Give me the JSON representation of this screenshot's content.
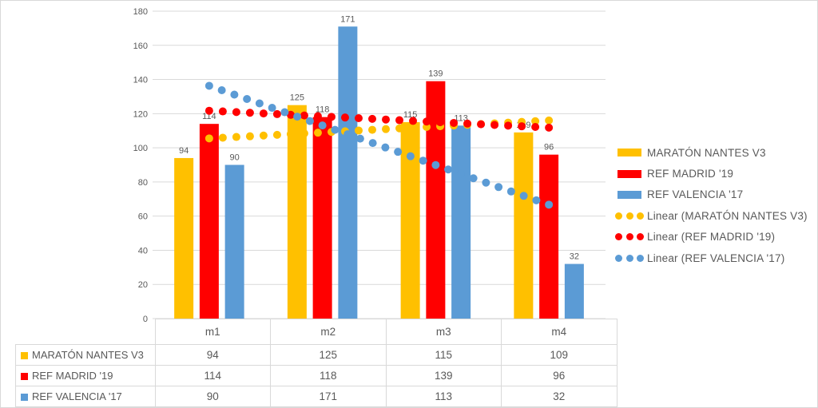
{
  "chart_data": {
    "type": "bar",
    "title": "",
    "categories": [
      "m1",
      "m2",
      "m3",
      "m4"
    ],
    "series": [
      {
        "name": "MARATÓN NANTES V3",
        "color": "#FFC000",
        "values": [
          94,
          125,
          115,
          109
        ]
      },
      {
        "name": "REF MADRID '19",
        "color": "#FF0000",
        "values": [
          114,
          118,
          139,
          96
        ]
      },
      {
        "name": "REF VALENCIA '17",
        "color": "#5B9BD5",
        "values": [
          90,
          171,
          113,
          32
        ]
      }
    ],
    "trendlines": [
      {
        "label": "Linear (MARATÓN NANTES V3)",
        "series_index": 0,
        "kind": "linear"
      },
      {
        "label": "Linear (REF MADRID '19)",
        "series_index": 1,
        "kind": "linear"
      },
      {
        "label": "Linear (REF VALENCIA '17)",
        "series_index": 2,
        "kind": "linear"
      }
    ],
    "y_axis": {
      "min": 0,
      "max": 180,
      "step": 20,
      "tick_labels": [
        "0",
        "20",
        "40",
        "60",
        "80",
        "100",
        "120",
        "140",
        "160",
        "180"
      ]
    },
    "xlabel": "",
    "ylabel": "",
    "grid": true,
    "data_labels": true,
    "legend_position": "right",
    "data_table_shown": true,
    "colors": {
      "grid": "#D9D9D9",
      "axis_text": "#595959",
      "label_text": "#595959",
      "table_border": "#D9D9D9",
      "background": "#FFFFFF"
    }
  }
}
